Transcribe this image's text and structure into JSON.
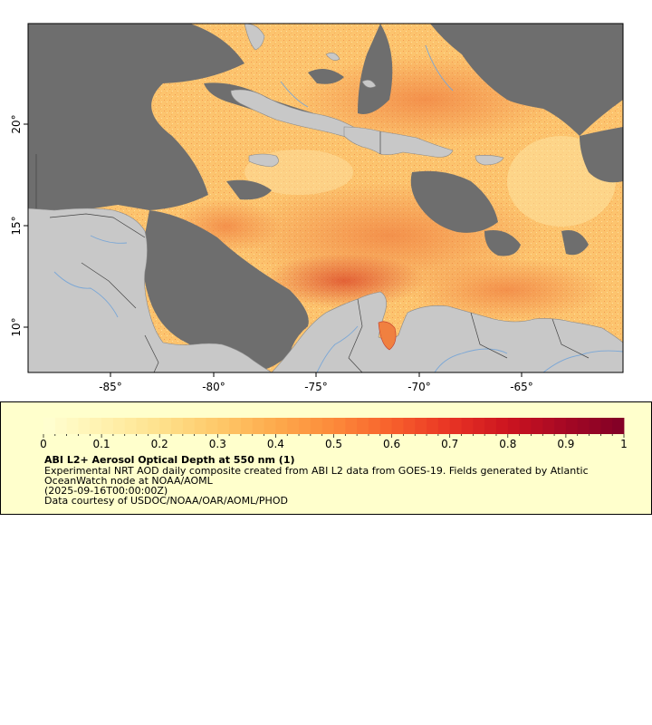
{
  "map": {
    "lon_ticks": [
      "-85°",
      "-80°",
      "-75°",
      "-70°",
      "-65°"
    ],
    "lat_ticks": [
      "20°",
      "15°",
      "10°"
    ],
    "colors": {
      "land": "#c8c8c8",
      "no_data": "#6e6e6e",
      "rivers": "#7ba7d6",
      "borders": "#555555"
    }
  },
  "legend": {
    "ticks": [
      "0",
      "0.1",
      "0.2",
      "0.3",
      "0.4",
      "0.5",
      "0.6",
      "0.7",
      "0.8",
      "0.9",
      "1"
    ],
    "range": [
      0,
      1
    ],
    "colormap": [
      "#ffffd2",
      "#fff2b0",
      "#fee18c",
      "#fec96a",
      "#fdaa4c",
      "#fc8a3a",
      "#f7602c",
      "#e83424",
      "#cc1420",
      "#a50824",
      "#800026"
    ],
    "title": "ABI L2+ Aerosol Optical Depth at 550 nm (1)",
    "line1": "Experimental NRT AOD daily composite created from ABI L2 data from GOES-19. Fields generated by Atlantic",
    "line2": "OceanWatch node at NOAA/AOML",
    "line3": "(2025-09-16T00:00:00Z)",
    "line4": "Data courtesy of USDOC/NOAA/OAR/AOML/PHOD"
  }
}
